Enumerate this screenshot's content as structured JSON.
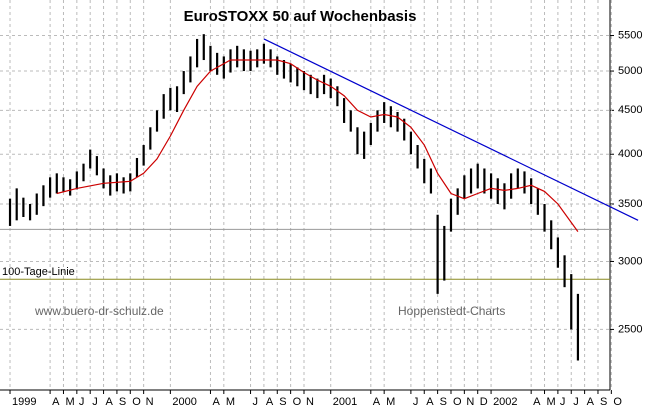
{
  "chart_data": {
    "type": "range-bar",
    "title": "EuroSTOXX 50 auf Wochenbasis",
    "source": "www.buero-dr-schulz.de",
    "credit": "Hoppenstedt-Charts",
    "log_y": true,
    "grid": true,
    "bar_color": "#000000",
    "xlim": [
      -0.75,
      44.9
    ],
    "ylim": [
      2125,
      6050
    ],
    "yticks": [
      2500,
      3000,
      3500,
      4000,
      4500,
      5000,
      5500
    ],
    "xticks": [
      {
        "value": 0,
        "label": "1999"
      },
      {
        "value": 3,
        "label": "A"
      },
      {
        "value": 4,
        "label": "M"
      },
      {
        "value": 5,
        "label": "J"
      },
      {
        "value": 6,
        "label": "J"
      },
      {
        "value": 7,
        "label": "A"
      },
      {
        "value": 8,
        "label": "S"
      },
      {
        "value": 9,
        "label": "O"
      },
      {
        "value": 10,
        "label": "N"
      },
      {
        "value": 12,
        "label": "2000"
      },
      {
        "value": 15,
        "label": "A"
      },
      {
        "value": 16,
        "label": "M"
      },
      {
        "value": 18,
        "label": "J"
      },
      {
        "value": 19,
        "label": "A"
      },
      {
        "value": 20,
        "label": "S"
      },
      {
        "value": 21,
        "label": "O"
      },
      {
        "value": 22,
        "label": "N"
      },
      {
        "value": 24,
        "label": "2001"
      },
      {
        "value": 27,
        "label": "A"
      },
      {
        "value": 28,
        "label": "M"
      },
      {
        "value": 30,
        "label": "J"
      },
      {
        "value": 31,
        "label": "A"
      },
      {
        "value": 32,
        "label": "S"
      },
      {
        "value": 33,
        "label": "O"
      },
      {
        "value": 34,
        "label": "N"
      },
      {
        "value": 35,
        "label": "D"
      },
      {
        "value": 36,
        "label": "2002"
      },
      {
        "value": 39,
        "label": "A"
      },
      {
        "value": 40,
        "label": "M"
      },
      {
        "value": 41,
        "label": "J"
      },
      {
        "value": 42,
        "label": "J"
      },
      {
        "value": 43,
        "label": "A"
      },
      {
        "value": 44,
        "label": "S"
      },
      {
        "value": 45,
        "label": "O"
      }
    ],
    "x": [
      0,
      0.5,
      1,
      1.5,
      2,
      2.5,
      3,
      3.5,
      4,
      4.5,
      5,
      5.5,
      6,
      6.5,
      7,
      7.5,
      8,
      8.5,
      9,
      9.5,
      10,
      10.5,
      11,
      11.5,
      12,
      12.5,
      13,
      13.5,
      14,
      14.5,
      15,
      15.5,
      16,
      16.5,
      17,
      17.5,
      18,
      18.5,
      19,
      19.5,
      20,
      20.5,
      21,
      21.5,
      22,
      22.5,
      23,
      23.5,
      24,
      24.5,
      25,
      25.5,
      26,
      26.5,
      27,
      27.5,
      28,
      28.5,
      29,
      29.5,
      30,
      30.5,
      31,
      31.5,
      32,
      32.5,
      33,
      33.5,
      34,
      34.5,
      35,
      35.5,
      36,
      36.5,
      37,
      37.5,
      38,
      38.5,
      39,
      39.5,
      40,
      40.5,
      41,
      41.5,
      42,
      42.5
    ],
    "lows": [
      3300,
      3350,
      3380,
      3350,
      3400,
      3480,
      3560,
      3600,
      3620,
      3580,
      3640,
      3720,
      3850,
      3780,
      3650,
      3580,
      3620,
      3600,
      3620,
      3760,
      3880,
      4050,
      4250,
      4400,
      4500,
      4480,
      4700,
      4850,
      5050,
      5150,
      5000,
      4950,
      4900,
      4980,
      5050,
      5000,
      5000,
      5050,
      5100,
      5050,
      4950,
      4900,
      4850,
      4800,
      4750,
      4700,
      4650,
      4700,
      4650,
      4550,
      4350,
      4250,
      4000,
      3950,
      4100,
      4250,
      4350,
      4300,
      4250,
      4150,
      4000,
      3850,
      3700,
      3600,
      2750,
      2850,
      3250,
      3400,
      3550,
      3600,
      3650,
      3600,
      3550,
      3500,
      3450,
      3550,
      3650,
      3600,
      3500,
      3400,
      3250,
      3100,
      2950,
      2800,
      2500,
      2300
    ],
    "highs": [
      3550,
      3650,
      3560,
      3500,
      3600,
      3680,
      3760,
      3800,
      3760,
      3740,
      3820,
      3900,
      4050,
      3980,
      3850,
      3780,
      3800,
      3760,
      3800,
      3960,
      4100,
      4300,
      4500,
      4700,
      4780,
      4800,
      5000,
      5200,
      5450,
      5520,
      5350,
      5250,
      5200,
      5300,
      5350,
      5300,
      5280,
      5300,
      5380,
      5300,
      5200,
      5150,
      5100,
      5050,
      5000,
      4950,
      4900,
      4950,
      4900,
      4800,
      4650,
      4500,
      4300,
      4250,
      4350,
      4500,
      4600,
      4550,
      4480,
      4400,
      4250,
      4100,
      3950,
      3850,
      3400,
      3300,
      3550,
      3650,
      3780,
      3850,
      3900,
      3850,
      3800,
      3750,
      3700,
      3800,
      3850,
      3820,
      3750,
      3650,
      3500,
      3350,
      3200,
      3050,
      2900,
      2750
    ],
    "ma": {
      "color": "#cc0000",
      "x": [
        3.5,
        5,
        7,
        9,
        10,
        11,
        12,
        13,
        14,
        15,
        16.5,
        18,
        20,
        21,
        22,
        23,
        24,
        25,
        26,
        27,
        28,
        29,
        30,
        31,
        32,
        33,
        34,
        35,
        36,
        37,
        38,
        39,
        40,
        41,
        42.5
      ],
      "values": [
        3600,
        3650,
        3700,
        3720,
        3800,
        3950,
        4200,
        4500,
        4800,
        5000,
        5150,
        5150,
        5150,
        5100,
        4980,
        4880,
        4800,
        4680,
        4500,
        4420,
        4450,
        4420,
        4300,
        4100,
        3800,
        3600,
        3550,
        3600,
        3650,
        3630,
        3650,
        3680,
        3620,
        3500,
        3250
      ]
    },
    "trend": {
      "color": "#0000cc",
      "x": [
        19,
        47
      ],
      "values": [
        5450,
        3350
      ]
    },
    "hlines": [
      {
        "value": 3270,
        "color": "#999999"
      },
      {
        "value": 2860,
        "color": "#8a8a20",
        "label": "100-Tage-Linie",
        "label_color": "#cc0000"
      }
    ]
  }
}
